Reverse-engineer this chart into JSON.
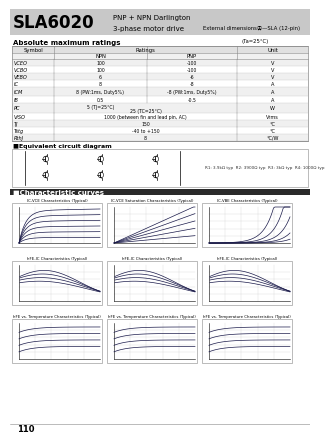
{
  "title": "SLA6020",
  "subtitle_line1": "PNP + NPN Darlington",
  "subtitle_line2": "3-phase motor drive",
  "external_dim": "External dimensionsⒶ—SLA (12-pin)",
  "abs_max_title": "Absolute maximum ratings",
  "abs_max_note": "(Ta=25°C)",
  "table_rows": [
    [
      "VCEO",
      "100",
      "-100",
      "V"
    ],
    [
      "VCBO",
      "100",
      "-100",
      "V"
    ],
    [
      "VEBO",
      "6",
      "-6",
      "V"
    ],
    [
      "IC",
      "8",
      "-8",
      "A"
    ],
    [
      "ICM",
      "8 (PW:1ms, Duty5%)",
      "-8 (PW:1ms, Duty5%)",
      "A"
    ],
    [
      "IB",
      "0.5",
      "-0.5",
      "A"
    ],
    [
      "PC",
      "5 (TJ=25°C)  25 (TC=25°C)",
      "",
      "W"
    ],
    [
      "VISO",
      "1000 (between fin and lead pin, AC)",
      "",
      "Vrms"
    ],
    [
      "TJ",
      "150",
      "",
      "°C"
    ],
    [
      "Tstg",
      "-40 to +150",
      "",
      "°C"
    ],
    [
      "RthJ",
      "8",
      "",
      "°C/W"
    ]
  ],
  "equiv_title": "■Equivalent circuit diagram",
  "char_title": "■Characteristic curves",
  "resistor_note": "R1: 3.9kΩ typ  R2: 3900Ω typ  R3: 3kΩ typ  R4: 1000Ω typ",
  "row1_titles": [
    "IC-VCE Characteristics (Typical)",
    "IC-VCE Saturation Characteristics (Typical)",
    "IC-VBE Characteristics (Typical)"
  ],
  "row2_titles": [
    "hFE-IC Characteristics (Typical)",
    "hFE-IC Characteristics (Typical)",
    "hFE-IC Characteristics (Typical)"
  ],
  "row3_titles": [
    "hFE vs. Temperature Characteristics (Typical)",
    "hFE vs. Temperature Characteristics (Typical)",
    "hFE vs. Temperature Characteristics (Typical)"
  ],
  "page_number": "110",
  "header_gray": "#c8c8c8",
  "white": "#ffffff",
  "light_gray": "#f0f0f0",
  "mid_gray": "#e0e0e0",
  "dark_gray": "#888888",
  "black": "#000000",
  "chart_line": "#1a1a4a",
  "grid_color": "#cccccc"
}
